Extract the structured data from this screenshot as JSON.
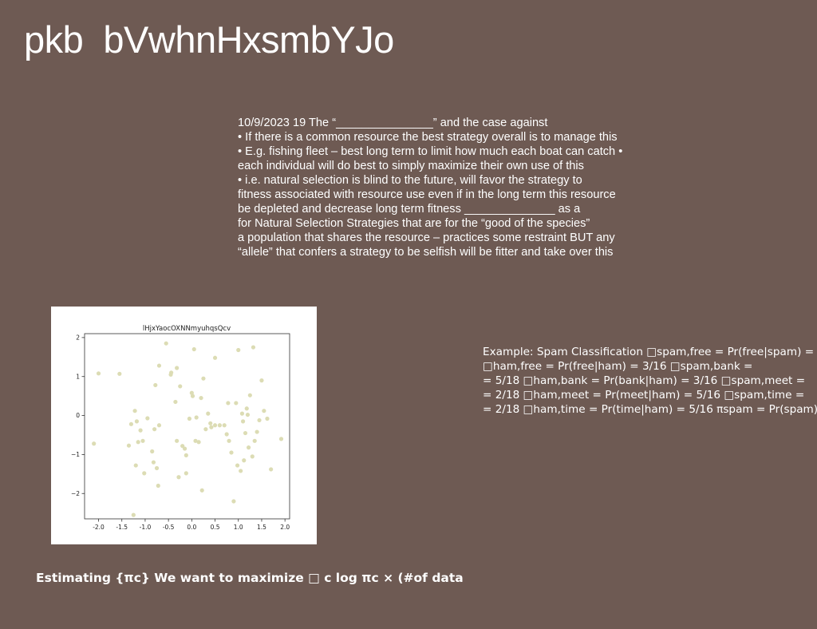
{
  "title": "pkb  bVwhnHxsmbYJo",
  "notes": [
    "10/9/2023 19 The “_______________” and the case against",
    "• If there is a common resource the best strategy overall is to manage this",
    "• E.g. fishing fleet – best long term to limit how much each boat can catch •",
    "each individual will do best to simply maximize their own use of this",
    "• i.e. natural selection is blind to the future, will favor the strategy to",
    "fitness associated with resource use even if in the long term this resource",
    "be depleted and decrease long term fitness ______________ as a",
    "for Natural Selection Strategies that are for the “good of the species”",
    "a population that shares the resource – practices some restraint BUT any",
    "“allele” that confers a strategy to be selfish will be fitter and take over this"
  ],
  "spam_lines": [
    "Example: Spam Classification □spam,free = Pr(free|spam) =",
    "□ham,free = Pr(free|ham) = 3/16 □spam,bank =",
    "= 5/18 □ham,bank = Pr(bank|ham) = 3/16 □spam,meet =",
    "= 2/18 □ham,meet = Pr(meet|ham) = 5/16 □spam,time =",
    "= 2/18 □ham,time = Pr(time|ham) = 5/16 πspam = Pr(spam)"
  ],
  "estimating": "Estimating {πc} We want to maximize □ c log πc × (#of data",
  "colors": {
    "background": "#6e5a53",
    "text": "#ffffff",
    "point": "#dcdcb4"
  },
  "chart_data": {
    "type": "scatter",
    "title": "lHjxYaocOXNNmyuhqsQcv",
    "xlabel": "",
    "ylabel": "",
    "xlim": [
      -2.3,
      2.1
    ],
    "ylim": [
      -2.65,
      2.1
    ],
    "xticks": [
      "-2.0",
      "-1.5",
      "-1.0",
      "-0.5",
      "0.0",
      "0.5",
      "1.0",
      "1.5",
      "2.0"
    ],
    "xtick_values": [
      -2.0,
      -1.5,
      -1.0,
      -0.5,
      0.0,
      0.5,
      1.0,
      1.5,
      2.0
    ],
    "yticks": [
      "2",
      "1",
      "0",
      "−1",
      "−2"
    ],
    "ytick_values": [
      2,
      1,
      0,
      -1,
      -2
    ],
    "grid": false,
    "points": [
      [
        -2.1,
        -0.72
      ],
      [
        -2.0,
        1.08
      ],
      [
        -1.55,
        1.07
      ],
      [
        -1.35,
        -0.77
      ],
      [
        -1.3,
        -0.22
      ],
      [
        -1.25,
        -2.55
      ],
      [
        -1.22,
        0.12
      ],
      [
        -1.2,
        -1.28
      ],
      [
        -1.18,
        -0.15
      ],
      [
        -1.15,
        -0.68
      ],
      [
        -1.1,
        -0.38
      ],
      [
        -1.05,
        -0.65
      ],
      [
        -1.02,
        -1.48
      ],
      [
        -0.95,
        -0.07
      ],
      [
        -0.85,
        -0.92
      ],
      [
        -0.82,
        -1.2
      ],
      [
        -0.8,
        -0.35
      ],
      [
        -0.78,
        0.78
      ],
      [
        -0.75,
        -1.35
      ],
      [
        -0.72,
        -1.8
      ],
      [
        -0.7,
        1.28
      ],
      [
        -0.7,
        -0.25
      ],
      [
        -0.55,
        1.85
      ],
      [
        -0.45,
        1.05
      ],
      [
        -0.44,
        1.1
      ],
      [
        -0.35,
        0.35
      ],
      [
        -0.32,
        1.22
      ],
      [
        -0.32,
        -0.65
      ],
      [
        -0.28,
        -1.58
      ],
      [
        -0.25,
        0.75
      ],
      [
        -0.2,
        -0.78
      ],
      [
        -0.15,
        -0.85
      ],
      [
        -0.12,
        -1.48
      ],
      [
        -0.12,
        -1.02
      ],
      [
        -0.05,
        -0.08
      ],
      [
        0.0,
        0.58
      ],
      [
        0.02,
        0.5
      ],
      [
        0.05,
        1.7
      ],
      [
        0.08,
        -0.65
      ],
      [
        0.1,
        -0.05
      ],
      [
        0.15,
        -0.68
      ],
      [
        0.2,
        0.45
      ],
      [
        0.22,
        -1.92
      ],
      [
        0.25,
        0.95
      ],
      [
        0.3,
        -0.35
      ],
      [
        0.35,
        0.05
      ],
      [
        0.4,
        -0.2
      ],
      [
        0.42,
        -0.3
      ],
      [
        0.5,
        1.48
      ],
      [
        0.5,
        -0.25
      ],
      [
        0.6,
        -0.25
      ],
      [
        0.7,
        -0.25
      ],
      [
        0.75,
        -0.48
      ],
      [
        0.78,
        0.32
      ],
      [
        0.8,
        -0.65
      ],
      [
        0.85,
        -0.95
      ],
      [
        0.9,
        -2.2
      ],
      [
        0.95,
        0.32
      ],
      [
        0.98,
        -1.28
      ],
      [
        1.0,
        1.68
      ],
      [
        1.05,
        -1.42
      ],
      [
        1.08,
        0.05
      ],
      [
        1.1,
        -0.15
      ],
      [
        1.12,
        -1.15
      ],
      [
        1.15,
        -0.45
      ],
      [
        1.18,
        0.18
      ],
      [
        1.2,
        0.02
      ],
      [
        1.22,
        -0.82
      ],
      [
        1.25,
        0.52
      ],
      [
        1.3,
        -1.05
      ],
      [
        1.32,
        1.75
      ],
      [
        1.35,
        -0.65
      ],
      [
        1.4,
        -0.42
      ],
      [
        1.45,
        -0.12
      ],
      [
        1.5,
        0.9
      ],
      [
        1.55,
        0.12
      ],
      [
        1.62,
        -0.08
      ],
      [
        1.7,
        -1.38
      ],
      [
        1.92,
        -0.6
      ]
    ]
  }
}
